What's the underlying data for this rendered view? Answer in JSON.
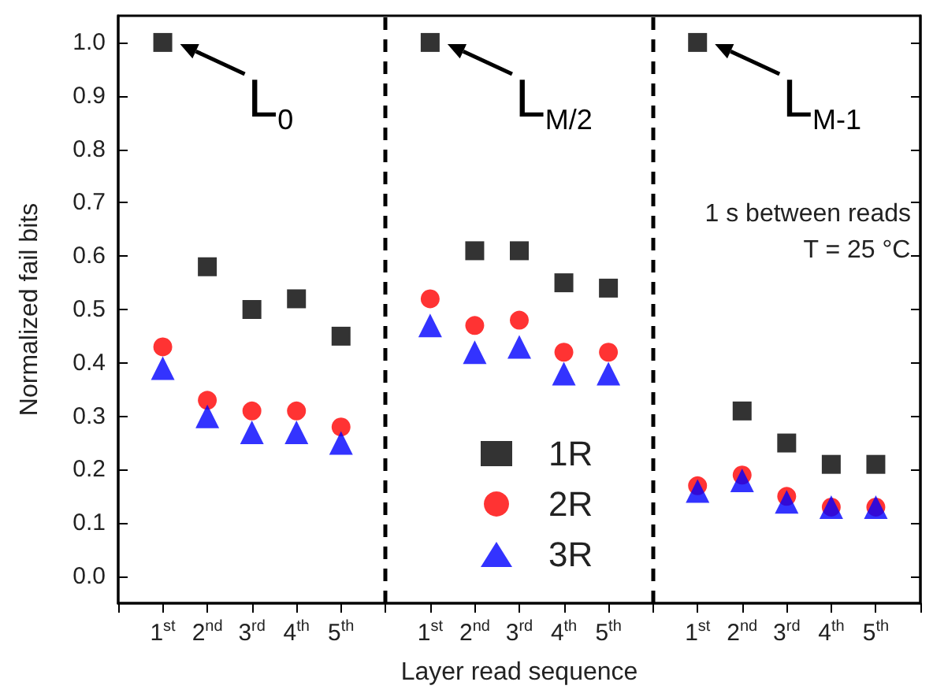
{
  "chart_data": {
    "type": "scatter",
    "xlabel": "Layer read sequence",
    "ylabel": "Normalized fail bits",
    "categories": [
      null,
      "1$^{st}$",
      "2$^{nd}$",
      "3$^{rd}$",
      "4$^{th}$",
      "5$^{th}$",
      null,
      "1$^{st}$",
      "2$^{nd}$",
      "3$^{rd}$",
      "4$^{th}$",
      "5$^{th}$",
      null,
      "1$^{st}$",
      "2$^{nd}$",
      "3$^{rd}$",
      "4$^{th}$",
      "5$^{th}$",
      null
    ],
    "ylim": [
      -0.05,
      1.05
    ],
    "yticks": [
      {
        "value": 0,
        "label": "0.0"
      },
      0.1,
      0.2,
      0.3,
      0.4,
      0.5,
      0.6,
      0.7,
      0.8,
      0.9,
      {
        "value": 1,
        "label": "1.0"
      }
    ],
    "series": [
      {
        "name": "1R",
        "color": "#000000",
        "marker": "square",
        "values": [
          null,
          1.0,
          0.58,
          0.5,
          0.52,
          0.45,
          null,
          1.0,
          0.61,
          0.61,
          0.55,
          0.54,
          null,
          1.0,
          0.31,
          0.25,
          0.21,
          0.21,
          null
        ]
      },
      {
        "name": "2R",
        "color": "#ff0000",
        "marker": "circle",
        "values": [
          null,
          0.43,
          0.33,
          0.31,
          0.31,
          0.28,
          null,
          0.52,
          0.47,
          0.48,
          0.42,
          0.42,
          null,
          0.17,
          0.19,
          0.15,
          0.13,
          0.13,
          null
        ]
      },
      {
        "name": "3R",
        "color": "#0000ff",
        "marker": "triangle",
        "values": [
          null,
          0.39,
          0.3,
          0.27,
          0.27,
          0.25,
          null,
          0.47,
          0.42,
          0.43,
          0.38,
          0.38,
          null,
          0.16,
          0.18,
          0.14,
          0.13,
          0.13,
          null
        ]
      }
    ],
    "annotations": [
      "L$_{0}$",
      "L$_{M/2}$",
      "L$_{M-1}$",
      "1 s between reads",
      "T = 25 °C"
    ],
    "legend": "bottom"
  }
}
